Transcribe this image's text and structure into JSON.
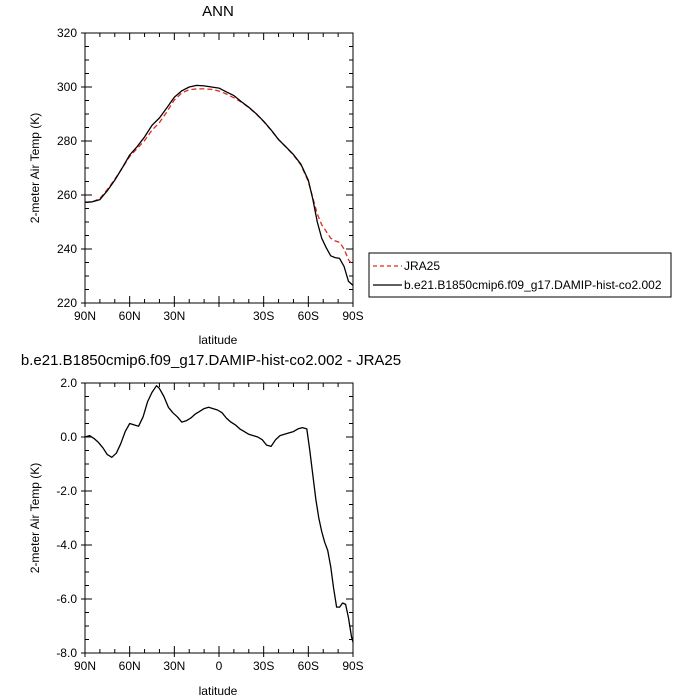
{
  "chart_data": [
    {
      "type": "line",
      "title": "ANN",
      "xlabel": "latitude",
      "ylabel": "2-meter Air Temp (K)",
      "xlim": [
        90,
        -90
      ],
      "ylim": [
        220,
        320
      ],
      "x_ticks": [
        90,
        60,
        30,
        0,
        -30,
        -60,
        -90
      ],
      "x_tick_labels": [
        "90N",
        "60N",
        "30N",
        "",
        "30S",
        "60S",
        "90S"
      ],
      "y_ticks": [
        220,
        240,
        260,
        280,
        300,
        320
      ],
      "y_tick_labels": [
        "220",
        "240",
        "260",
        "280",
        "300",
        "320"
      ],
      "legend_placement": "right",
      "series": [
        {
          "name": "JRA25",
          "color": "#e0291f",
          "style": "dashed",
          "x": [
            90,
            85,
            80,
            75,
            70,
            65,
            60,
            55,
            50,
            45,
            40,
            35,
            30,
            25,
            20,
            15,
            10,
            5,
            0,
            -5,
            -10,
            -15,
            -20,
            -25,
            -30,
            -35,
            -40,
            -45,
            -50,
            -55,
            -60,
            -63,
            -66,
            -69,
            -72,
            -75,
            -78,
            -81,
            -84,
            -87,
            -90
          ],
          "y": [
            257.3,
            257.5,
            258.7,
            262.0,
            265.8,
            270.0,
            274.3,
            277.2,
            280.2,
            284.0,
            286.8,
            290.8,
            295.2,
            297.8,
            299.0,
            299.3,
            299.3,
            299.1,
            298.5,
            297.4,
            296.0,
            294.4,
            292.4,
            290.0,
            287.2,
            284.0,
            280.6,
            277.7,
            274.8,
            271.2,
            265.0,
            259.0,
            253.0,
            249.0,
            246.5,
            244.0,
            243.0,
            242.5,
            240.0,
            236.0,
            234.0
          ]
        },
        {
          "name": "b.e21.B1850cmip6.f09_g17.DAMIP-hist-co2.002",
          "color": "#000000",
          "style": "solid",
          "x": [
            90,
            85,
            80,
            75,
            70,
            65,
            60,
            55,
            50,
            45,
            40,
            35,
            30,
            25,
            20,
            15,
            10,
            5,
            0,
            -5,
            -10,
            -15,
            -20,
            -25,
            -30,
            -35,
            -40,
            -45,
            -50,
            -55,
            -60,
            -63,
            -66,
            -69,
            -72,
            -75,
            -78,
            -81,
            -84,
            -87,
            -90
          ],
          "y": [
            257.3,
            257.5,
            258.3,
            261.6,
            265.5,
            270.0,
            274.8,
            277.9,
            281.5,
            285.8,
            288.5,
            292.3,
            296.2,
            298.6,
            300.0,
            300.6,
            300.4,
            300.0,
            299.6,
            298.2,
            296.8,
            294.6,
            292.5,
            290.1,
            287.3,
            284.1,
            280.5,
            277.8,
            275.0,
            271.4,
            265.5,
            258.5,
            250.0,
            244.0,
            240.5,
            237.5,
            236.8,
            236.5,
            233.5,
            228.0,
            226.5
          ]
        }
      ]
    },
    {
      "type": "line",
      "title": "b.e21.B1850cmip6.f09_g17.DAMIP-hist-co2.002 - JRA25",
      "xlabel": "latitude",
      "ylabel": "2-meter Air Temp (K)",
      "xlim": [
        90,
        -90
      ],
      "ylim": [
        -8,
        2
      ],
      "x_ticks": [
        90,
        60,
        30,
        0,
        -30,
        -60,
        -90
      ],
      "x_tick_labels": [
        "90N",
        "60N",
        "30N",
        "0",
        "30S",
        "60S",
        "90S"
      ],
      "y_ticks": [
        -8,
        -6,
        -4,
        -2,
        0,
        2
      ],
      "y_tick_labels": [
        "-8.0",
        "-6.0",
        "-4.0",
        "-2.0",
        "0.0",
        "2.0"
      ],
      "series": [
        {
          "color": "#000000",
          "style": "solid",
          "x": [
            90,
            87,
            84,
            81,
            78,
            75,
            72,
            69,
            66,
            63,
            60,
            57,
            54,
            51,
            48,
            45,
            42,
            40,
            37,
            34,
            31,
            28,
            25,
            22,
            19,
            16,
            13,
            10,
            7,
            4,
            1,
            -2,
            -5,
            -8,
            -11,
            -14,
            -17,
            -20,
            -23,
            -26,
            -29,
            -32,
            -35,
            -38,
            -41,
            -44,
            -47,
            -50,
            -53,
            -56,
            -59,
            -61,
            -63,
            -65,
            -67,
            -69,
            -71,
            -73,
            -75,
            -77,
            -79,
            -81,
            -83,
            -85,
            -87,
            -89,
            -90
          ],
          "y": [
            0.0,
            0.05,
            -0.05,
            -0.2,
            -0.4,
            -0.65,
            -0.75,
            -0.6,
            -0.25,
            0.2,
            0.5,
            0.45,
            0.4,
            0.75,
            1.3,
            1.65,
            1.9,
            1.8,
            1.5,
            1.1,
            0.9,
            0.75,
            0.55,
            0.6,
            0.7,
            0.85,
            0.95,
            1.05,
            1.1,
            1.05,
            1.0,
            0.9,
            0.7,
            0.55,
            0.45,
            0.3,
            0.2,
            0.1,
            0.05,
            0.0,
            -0.1,
            -0.3,
            -0.35,
            -0.1,
            0.05,
            0.1,
            0.15,
            0.2,
            0.3,
            0.35,
            0.3,
            -0.5,
            -1.4,
            -2.3,
            -3.0,
            -3.5,
            -3.9,
            -4.2,
            -4.8,
            -5.6,
            -6.3,
            -6.3,
            -6.15,
            -6.2,
            -6.7,
            -7.4,
            -7.6
          ]
        }
      ]
    }
  ]
}
